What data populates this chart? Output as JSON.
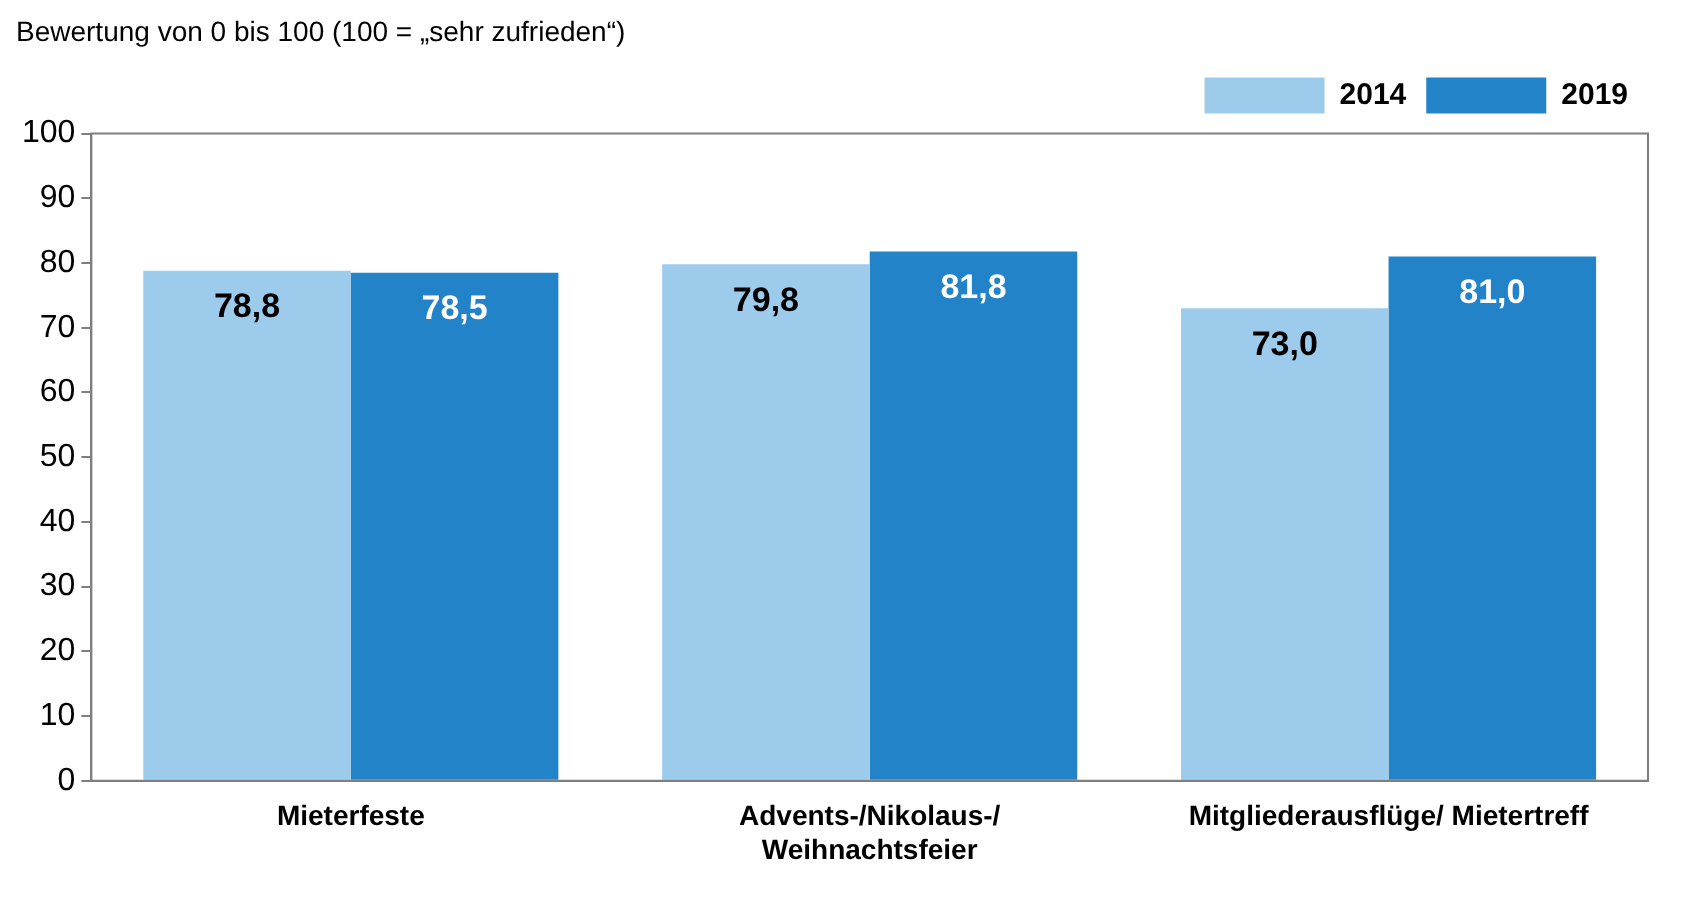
{
  "chart_data": {
    "type": "bar",
    "title": "Bewertung von 0 bis 100 (100 = „sehr zufrieden“)",
    "categories": [
      "Mieterfeste",
      "Advents-/Nikolaus-/\nWeihnachtsfeier",
      "Mitgliederausflüge/ Mietertreff"
    ],
    "series": [
      {
        "name": "2014",
        "color": "#9dcbeb",
        "values": [
          78.8,
          79.8,
          73.0
        ],
        "value_labels": [
          "78,8",
          "79,8",
          "73,0"
        ]
      },
      {
        "name": "2019",
        "color": "#2383c8",
        "values": [
          78.5,
          81.8,
          81.0
        ],
        "value_labels": [
          "78,5",
          "81,8",
          "81,0"
        ]
      }
    ],
    "ylim": [
      0,
      100
    ],
    "yticks": [
      0,
      10,
      20,
      30,
      40,
      50,
      60,
      70,
      80,
      90,
      100
    ],
    "grid": false,
    "legend": "top right"
  }
}
